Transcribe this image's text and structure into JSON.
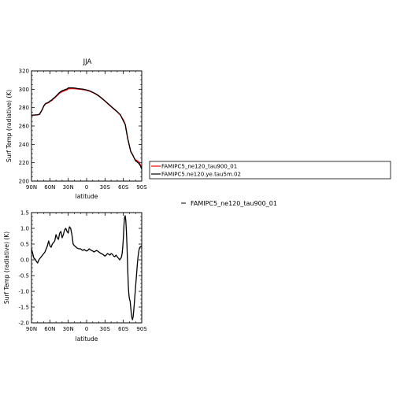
{
  "chart_data": [
    {
      "type": "line",
      "title": "JJA",
      "xlabel": "latitude",
      "ylabel": "Surf Temp (radiative) (K)",
      "x_ticks": [
        90,
        60,
        30,
        0,
        -30,
        -60,
        -90
      ],
      "x_tick_labels": [
        "90N",
        "60N",
        "30N",
        "0",
        "30S",
        "60S",
        "90S"
      ],
      "xlim": [
        90,
        -90
      ],
      "ylim": [
        200,
        320
      ],
      "y_ticks": [
        200,
        220,
        240,
        260,
        280,
        300,
        320
      ],
      "y_tick_labels": [
        "200",
        "220",
        "240",
        "260",
        "280",
        "300",
        "320"
      ],
      "x": [
        90,
        85,
        80,
        77,
        75,
        72,
        70,
        67,
        65,
        62,
        60,
        57,
        55,
        52,
        50,
        47,
        45,
        42,
        40,
        37,
        35,
        32,
        30,
        27,
        25,
        20,
        15,
        10,
        5,
        0,
        -5,
        -10,
        -15,
        -20,
        -25,
        -30,
        -35,
        -40,
        -45,
        -50,
        -55,
        -60,
        -63,
        -65,
        -67,
        -70,
        -72,
        -75,
        -78,
        -80,
        -82,
        -85,
        -88,
        -90
      ],
      "series": [
        {
          "name": "FAMIPC5_ne120_tau900_01",
          "color": "#ff0000",
          "values": [
            271.4,
            271.8,
            272.1,
            272.5,
            274.6,
            278.3,
            281.5,
            284.1,
            284.6,
            285.4,
            286.6,
            287.6,
            289.0,
            290.6,
            292.0,
            293.7,
            295.2,
            296.6,
            297.3,
            298.1,
            298.7,
            299.3,
            300.5,
            300.6,
            300.7,
            300.6,
            300.2,
            299.9,
            299.5,
            298.8,
            297.8,
            296.4,
            294.7,
            292.5,
            289.8,
            287.0,
            284.0,
            281.0,
            278.1,
            275.3,
            272.0,
            266.6,
            262.0,
            255.0,
            247.0,
            238.3,
            232.0,
            228.5,
            224.7,
            223.1,
            222.5,
            221.0,
            217.5,
            214.5
          ]
        },
        {
          "name": "FAMIPC5.ne120.ye.tau5m.02",
          "color": "#000000",
          "values": [
            271.8,
            272.0,
            272.3,
            272.8,
            275.0,
            278.6,
            281.9,
            284.5,
            285.0,
            285.8,
            287.1,
            288.2,
            289.6,
            291.2,
            292.5,
            294.5,
            296.1,
            297.6,
            298.4,
            299.1,
            299.7,
            300.3,
            301.5,
            301.6,
            301.6,
            301.3,
            300.8,
            300.4,
            300.0,
            299.2,
            298.2,
            296.7,
            295.0,
            292.8,
            290.1,
            287.3,
            284.3,
            281.3,
            278.4,
            275.6,
            272.3,
            265.5,
            261.6,
            254.0,
            246.5,
            238.0,
            232.5,
            229.0,
            224.5,
            222.0,
            221.0,
            219.5,
            216.5,
            213.0
          ]
        }
      ],
      "legend": "right, outside"
    },
    {
      "type": "line",
      "title": "",
      "xlabel": "latitude",
      "ylabel": "Surf Temp (radiative) (K)",
      "x_ticks": [
        90,
        60,
        30,
        0,
        -30,
        -60,
        -90
      ],
      "x_tick_labels": [
        "90N",
        "60N",
        "30N",
        "0",
        "30S",
        "60S",
        "90S"
      ],
      "xlim": [
        90,
        -90
      ],
      "ylim": [
        -2.0,
        1.5
      ],
      "y_ticks": [
        -2.0,
        -1.5,
        -1.0,
        -0.5,
        0.0,
        0.5,
        1.0,
        1.5
      ],
      "y_tick_labels": [
        "-2.0",
        "-1.5",
        "-1.0",
        "-0.5",
        "0.0",
        "0.5",
        "1.0",
        "1.5"
      ],
      "x": [
        90,
        88,
        86,
        84,
        82,
        80,
        78,
        76,
        74,
        72,
        70,
        68,
        66,
        64,
        62,
        60,
        58,
        56,
        54,
        52,
        50,
        48,
        46,
        44,
        42,
        40,
        38,
        36,
        34,
        32,
        30,
        28,
        26,
        24,
        22,
        20,
        18,
        16,
        14,
        12,
        10,
        8,
        6,
        4,
        2,
        0,
        -2,
        -4,
        -6,
        -8,
        -10,
        -12,
        -14,
        -16,
        -18,
        -20,
        -22,
        -24,
        -26,
        -28,
        -30,
        -32,
        -34,
        -36,
        -38,
        -40,
        -42,
        -44,
        -46,
        -48,
        -50,
        -52,
        -54,
        -56,
        -57,
        -58,
        -59,
        -60,
        -61,
        -62,
        -63,
        -64,
        -65,
        -66,
        -67,
        -68,
        -69,
        -70,
        -71,
        -72,
        -73,
        -74,
        -75,
        -76,
        -77,
        -78,
        -79,
        -80,
        -81,
        -82,
        -83,
        -84,
        -85,
        -86,
        -87,
        -88,
        -89,
        -90
      ],
      "series": [
        {
          "name": "",
          "color": "#000000",
          "values": [
            0.35,
            0.2,
            0.05,
            0.02,
            -0.05,
            -0.1,
            0.0,
            0.05,
            0.1,
            0.15,
            0.2,
            0.25,
            0.35,
            0.45,
            0.6,
            0.45,
            0.4,
            0.5,
            0.55,
            0.6,
            0.8,
            0.7,
            0.65,
            0.85,
            0.9,
            0.7,
            0.8,
            0.95,
            1.0,
            0.9,
            0.85,
            1.05,
            1.0,
            0.8,
            0.5,
            0.45,
            0.42,
            0.38,
            0.36,
            0.35,
            0.35,
            0.32,
            0.3,
            0.33,
            0.3,
            0.28,
            0.3,
            0.35,
            0.32,
            0.3,
            0.28,
            0.25,
            0.27,
            0.3,
            0.28,
            0.25,
            0.22,
            0.2,
            0.18,
            0.15,
            0.12,
            0.15,
            0.2,
            0.18,
            0.15,
            0.2,
            0.18,
            0.12,
            0.1,
            0.15,
            0.1,
            0.05,
            0.0,
            0.05,
            0.1,
            0.2,
            0.4,
            0.7,
            1.1,
            1.35,
            1.4,
            1.25,
            0.9,
            0.4,
            -0.2,
            -0.8,
            -1.1,
            -1.25,
            -1.3,
            -1.5,
            -1.7,
            -1.85,
            -1.9,
            -1.8,
            -1.6,
            -1.35,
            -1.1,
            -0.85,
            -0.6,
            -0.35,
            -0.1,
            0.1,
            0.25,
            0.35,
            0.4,
            0.42,
            0.43,
            0.45
          ]
        }
      ]
    }
  ],
  "legend_box": {
    "entries": [
      {
        "label": "FAMIPC5_ne120_tau900_01",
        "color": "#ff0000"
      },
      {
        "label": "FAMIPC5.ne120.ye.tau5m.02",
        "color": "#000000"
      }
    ]
  },
  "legend_bottom": {
    "label": "FAMIPC5_ne120_tau900_01",
    "color": "#000000"
  }
}
